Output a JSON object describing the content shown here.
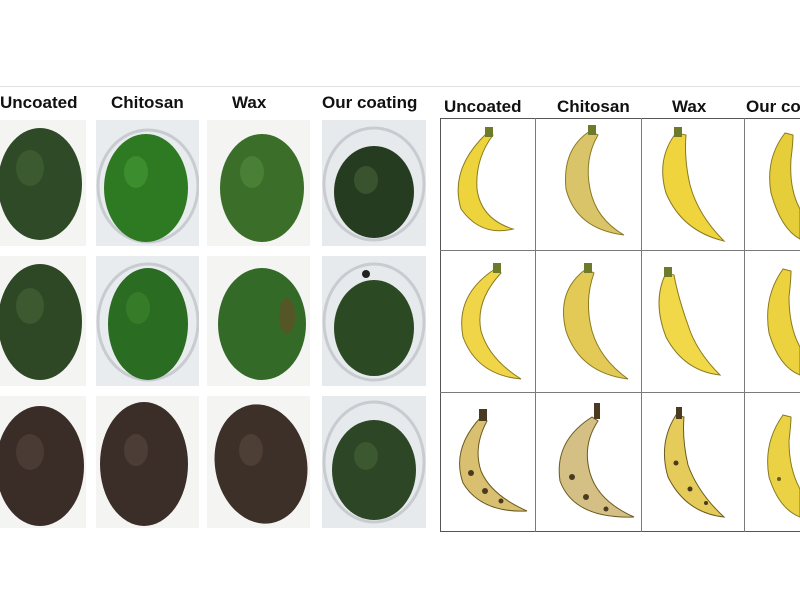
{
  "avocado_panel": {
    "headers": [
      "Uncoated",
      "Chitosan",
      "Wax",
      "Our coating"
    ]
  },
  "banana_panel": {
    "headers": [
      "Uncoated",
      "Chitosan",
      "Wax",
      "Our co"
    ]
  },
  "colors": {
    "avocado_fresh": "#2f5a23",
    "avocado_dark": "#3a2a24",
    "banana_yellow": "#e9cf3a",
    "banana_spotted": "#d9c07a"
  }
}
